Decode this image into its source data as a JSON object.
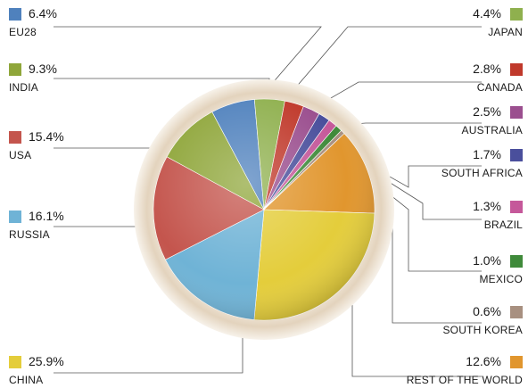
{
  "chart_data": {
    "type": "pie",
    "title": "",
    "slices": [
      {
        "label": "EU28",
        "value": 6.4,
        "display": "6.4%",
        "color": "#4f81bd"
      },
      {
        "label": "JAPAN",
        "value": 4.4,
        "display": "4.4%",
        "color": "#8fb04e"
      },
      {
        "label": "CANADA",
        "value": 2.8,
        "display": "2.8%",
        "color": "#c0392b"
      },
      {
        "label": "AUSTRALIA",
        "value": 2.5,
        "display": "2.5%",
        "color": "#9b4f8f"
      },
      {
        "label": "SOUTH AFRICA",
        "value": 1.7,
        "display": "1.7%",
        "color": "#4a4f9c"
      },
      {
        "label": "BRAZIL",
        "value": 1.3,
        "display": "1.3%",
        "color": "#c5589a"
      },
      {
        "label": "MEXICO",
        "value": 1.0,
        "display": "1.0%",
        "color": "#3f8a3a"
      },
      {
        "label": "SOUTH KOREA",
        "value": 0.6,
        "display": "0.6%",
        "color": "#a89080"
      },
      {
        "label": "REST OF THE WORLD",
        "value": 12.6,
        "display": "12.6%",
        "color": "#e1962e"
      },
      {
        "label": "CHINA",
        "value": 25.9,
        "display": "25.9%",
        "color": "#e4cd3b"
      },
      {
        "label": "RUSSIA",
        "value": 16.1,
        "display": "16.1%",
        "color": "#6fb3d6"
      },
      {
        "label": "USA",
        "value": 15.4,
        "display": "15.4%",
        "color": "#c4554d"
      },
      {
        "label": "INDIA",
        "value": 9.3,
        "display": "9.3%",
        "color": "#8fa63a"
      }
    ]
  }
}
